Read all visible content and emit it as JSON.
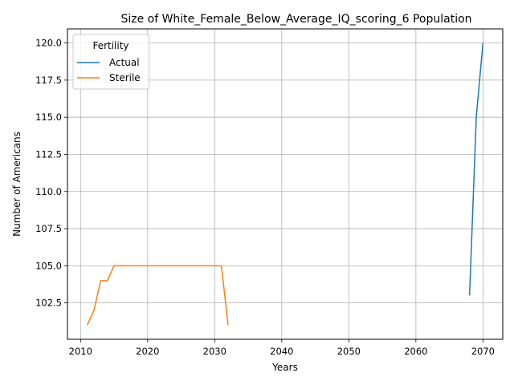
{
  "chart_data": {
    "type": "line",
    "title": "Size of White_Female_Below_Average_IQ_scoring_6 Population",
    "xlabel": "Years",
    "ylabel": "Number of Americans",
    "xlim": [
      2008.05,
      2072.95
    ],
    "ylim": [
      100.05,
      120.95
    ],
    "xticks": [
      2010,
      2020,
      2030,
      2040,
      2050,
      2060,
      2070
    ],
    "xtick_labels": [
      "2010",
      "2020",
      "2030",
      "2040",
      "2050",
      "2060",
      "2070"
    ],
    "yticks": [
      102.5,
      105.0,
      107.5,
      110.0,
      112.5,
      115.0,
      117.5,
      120.0
    ],
    "ytick_labels": [
      "102.5",
      "105.0",
      "107.5",
      "110.0",
      "112.5",
      "115.0",
      "117.5",
      "120.0"
    ],
    "grid": true,
    "legend": {
      "title": "Fertility",
      "placement": "top-left"
    },
    "series": [
      {
        "name": "Actual",
        "color": "#1f77b4",
        "x": [
          2068,
          2069,
          2070
        ],
        "y": [
          103,
          115,
          120
        ]
      },
      {
        "name": "Sterile",
        "color": "#ff7f0e",
        "x": [
          2011,
          2012,
          2013,
          2014,
          2015,
          2016,
          2017,
          2018,
          2019,
          2020,
          2021,
          2022,
          2023,
          2024,
          2025,
          2026,
          2027,
          2028,
          2029,
          2030,
          2031,
          2032
        ],
        "y": [
          101,
          102,
          104,
          104,
          105,
          105,
          105,
          105,
          105,
          105,
          105,
          105,
          105,
          105,
          105,
          105,
          105,
          105,
          105,
          105,
          105,
          101
        ]
      }
    ]
  }
}
